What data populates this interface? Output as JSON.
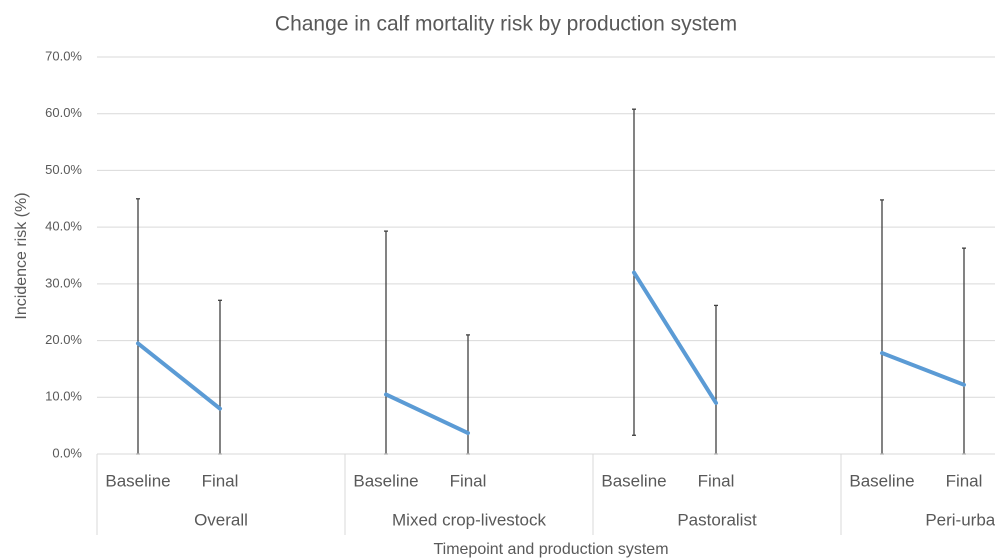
{
  "chart_data": {
    "type": "line",
    "title": "Change in calf mortality risk by production system",
    "y_axis_label": "Incidence risk (%)",
    "x_axis_label": "Timepoint and production system",
    "color": "#5b9bd5",
    "grid": true,
    "ylim": [
      0,
      70
    ],
    "yticks": [
      {
        "value": 0,
        "label": "0.0%"
      },
      {
        "value": 10,
        "label": "10.0%"
      },
      {
        "value": 20,
        "label": "20.0%"
      },
      {
        "value": 30,
        "label": "30.0%"
      },
      {
        "value": 40,
        "label": "40.0%"
      },
      {
        "value": 50,
        "label": "50.0%"
      },
      {
        "value": 60,
        "label": "60.0%"
      },
      {
        "value": 70,
        "label": "70.0%"
      }
    ],
    "groups": [
      {
        "name": "Overall",
        "categories": [
          "Baseline",
          "Final"
        ],
        "values": [
          19.5,
          8.0
        ],
        "ci_lower": [
          0,
          0
        ],
        "ci_upper": [
          45.0,
          27.1
        ]
      },
      {
        "name": "Mixed crop-livestock",
        "categories": [
          "Baseline",
          "Final"
        ],
        "values": [
          10.5,
          3.7
        ],
        "ci_lower": [
          0,
          0
        ],
        "ci_upper": [
          39.3,
          21.0
        ]
      },
      {
        "name": "Pastoralist",
        "categories": [
          "Baseline",
          "Final"
        ],
        "values": [
          32.0,
          9.0
        ],
        "ci_lower": [
          3.3,
          0
        ],
        "ci_upper": [
          60.8,
          26.2
        ]
      },
      {
        "name": "Peri-urban",
        "categories": [
          "Baseline",
          "Final"
        ],
        "values": [
          17.8,
          12.2
        ],
        "ci_lower": [
          0,
          0
        ],
        "ci_upper": [
          44.8,
          36.3
        ]
      }
    ]
  }
}
